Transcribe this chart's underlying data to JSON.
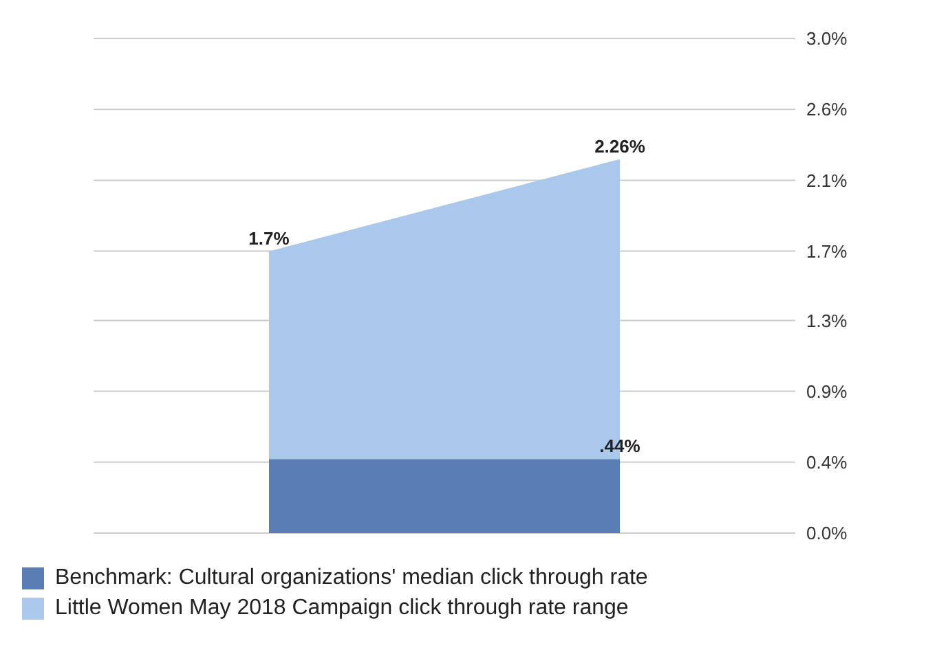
{
  "chart_data": {
    "type": "area",
    "categories": [
      null,
      null
    ],
    "series": [
      {
        "name": "Benchmark: Cultural organizations' median click through rate",
        "color": "#5b7db5",
        "values": [
          0.44,
          0.44
        ],
        "value_labels": [
          null,
          ".44%"
        ]
      },
      {
        "name": "Little Women May 2018 Campaign click through rate range",
        "color": "#a9c8ec",
        "values": [
          1.7,
          2.26
        ],
        "value_labels": [
          "1.7%",
          "2.26%"
        ]
      }
    ],
    "ylim": [
      0,
      3.0
    ],
    "yticks": [
      {
        "value": 0,
        "label": "0.0%"
      },
      {
        "value": 0.43,
        "label": "0.4%"
      },
      {
        "value": 0.86,
        "label": "0.9%"
      },
      {
        "value": 1.29,
        "label": "1.3%"
      },
      {
        "value": 1.71,
        "label": "1.7%"
      },
      {
        "value": 2.14,
        "label": "2.1%"
      },
      {
        "value": 2.57,
        "label": "2.6%"
      },
      {
        "value": 3.0,
        "label": "3.0%"
      }
    ],
    "grid": "y",
    "legend": "bottom"
  }
}
